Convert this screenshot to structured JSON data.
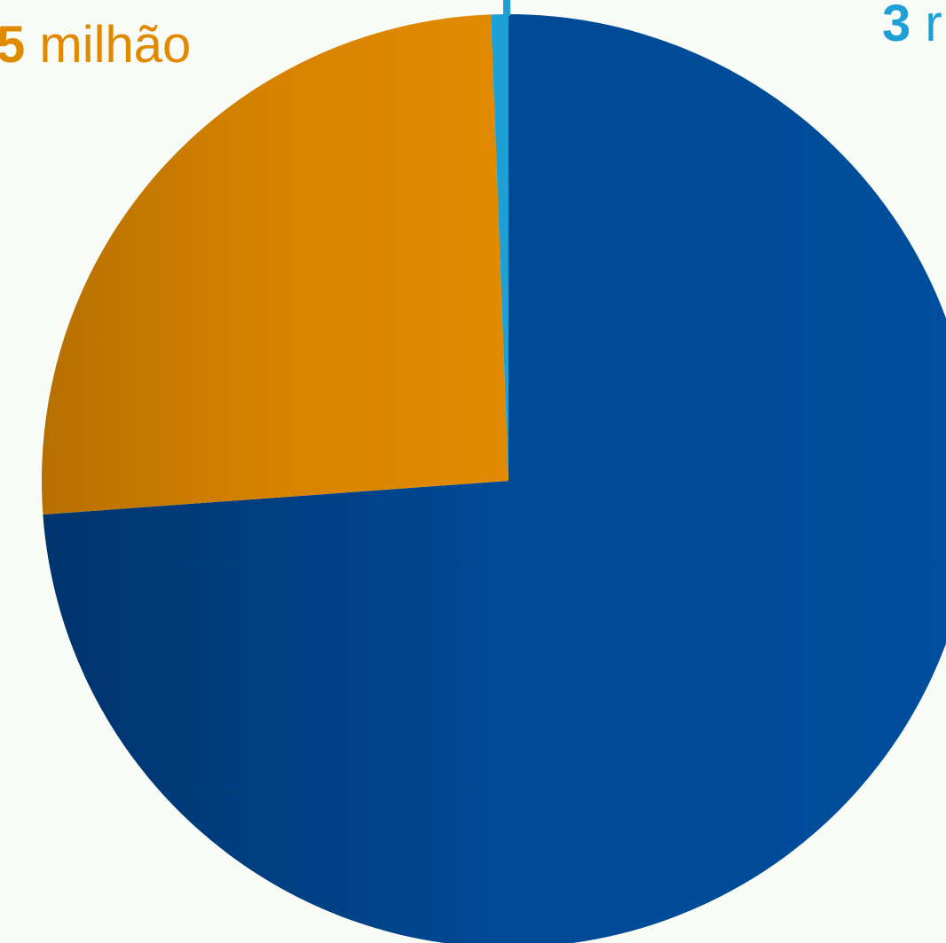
{
  "chart_data": {
    "type": "pie",
    "start_angle_deg": 0,
    "direction": "clockwise",
    "slices": [
      {
        "label": "",
        "value": 73.85,
        "color": "#004a96"
      },
      {
        "label": "",
        "value": 25.55,
        "color": "#e08a00"
      },
      {
        "label": "",
        "value": 0.6,
        "color": "#1ea0d6"
      }
    ],
    "data_labels": [
      {
        "top": "",
        "number": "5",
        "unit": "milhão",
        "color": "#e08a00"
      },
      {
        "number": "3",
        "unit": "r",
        "color": "#1ea0d6"
      }
    ]
  }
}
